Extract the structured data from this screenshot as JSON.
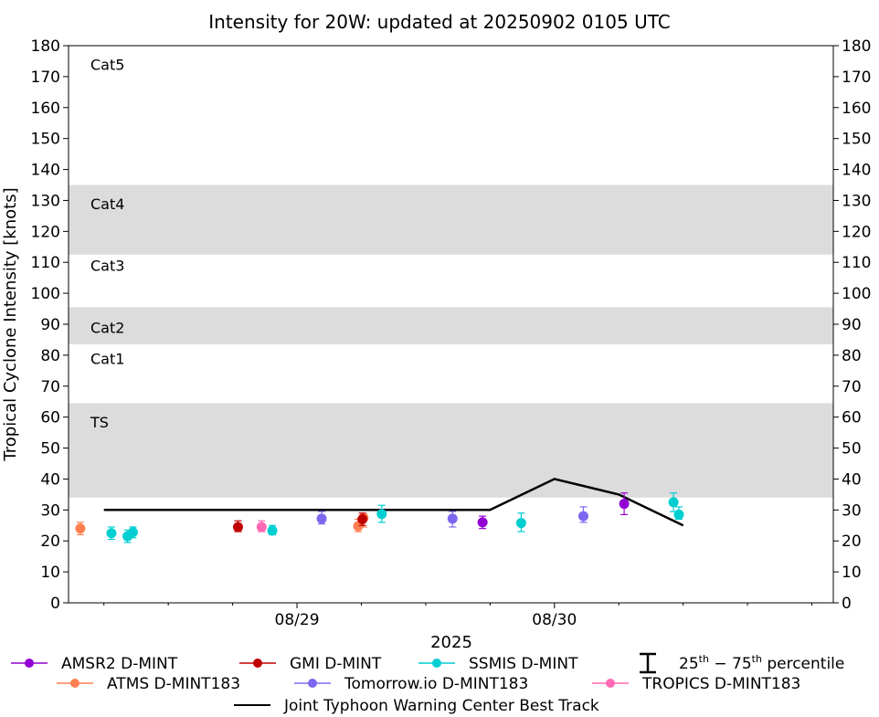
{
  "chart_data": {
    "type": "scatter",
    "title": "Intensity for 20W: updated at 20250902 0105 UTC",
    "ylabel": "Tropical Cyclone Intensity [knots]",
    "xlabel": "2025",
    "ylim": [
      0,
      180
    ],
    "xlim_hours": [
      -21.3,
      50.0
    ],
    "x_units": "hours since 08/29 00 UTC",
    "y_ticks": [
      0,
      10,
      20,
      30,
      40,
      50,
      60,
      70,
      80,
      90,
      100,
      110,
      120,
      130,
      140,
      150,
      160,
      170,
      180
    ],
    "x_major_ticks": [
      {
        "x": 0,
        "label": "08/29"
      },
      {
        "x": 24,
        "label": "08/30"
      }
    ],
    "x_minor_ticks": [
      -18,
      -12,
      -6,
      6,
      12,
      18,
      30,
      36,
      42,
      48
    ],
    "bands": [
      {
        "label": "TS",
        "y0": 34,
        "y1": 64.5,
        "shaded": true,
        "label_y": 58.5
      },
      {
        "label": "Cat1",
        "y0": 64.5,
        "y1": 83.5,
        "shaded": false,
        "label_y": 79
      },
      {
        "label": "Cat2",
        "y0": 83.5,
        "y1": 95.5,
        "shaded": true,
        "label_y": 89
      },
      {
        "label": "Cat3",
        "y0": 95.5,
        "y1": 112.5,
        "shaded": false,
        "label_y": 109
      },
      {
        "label": "Cat4",
        "y0": 112.5,
        "y1": 135,
        "shaded": true,
        "label_y": 129
      },
      {
        "label": "Cat5",
        "y0": 135,
        "y1": 180,
        "shaded": false,
        "label_y": 174
      }
    ],
    "band_color": "#dcdcdc",
    "best_track": {
      "name": "Joint Typhoon Warning Center Best Track",
      "color": "#000000",
      "x": [
        -18,
        18,
        24,
        30,
        36
      ],
      "y": [
        30,
        30,
        40,
        35,
        25
      ]
    },
    "series": [
      {
        "name": "AMSR2 D-MINT",
        "color": "#9400d3",
        "points": [
          [
            17.3,
            26,
            24,
            28
          ],
          [
            30.5,
            32,
            28.5,
            35.5
          ]
        ]
      },
      {
        "name": "ATMS D-MINT183",
        "color": "#ff7f50",
        "points": [
          [
            -20.2,
            24,
            22,
            26
          ],
          [
            5.7,
            24.8,
            23,
            27
          ],
          [
            6.2,
            27.5,
            24.5,
            28.5
          ]
        ]
      },
      {
        "name": "GMI D-MINT",
        "color": "#c00000",
        "points": [
          [
            -5.5,
            24.5,
            23,
            26.5
          ],
          [
            6.1,
            27,
            25,
            29
          ]
        ]
      },
      {
        "name": "Tomorrow.io D-MINT183",
        "color": "#7b68ee",
        "points": [
          [
            2.3,
            27.2,
            25.5,
            29.5
          ],
          [
            14.5,
            27.2,
            24.5,
            29.5
          ],
          [
            26.7,
            28,
            26,
            31
          ]
        ]
      },
      {
        "name": "SSMIS D-MINT",
        "color": "#00ced1",
        "points": [
          [
            -17.3,
            22.5,
            20.5,
            24.5
          ],
          [
            -15.8,
            21.5,
            19.5,
            23.5
          ],
          [
            -15.3,
            22.8,
            21,
            24.5
          ],
          [
            -2.3,
            23.3,
            22,
            25
          ],
          [
            7.9,
            28.7,
            26,
            31.5
          ],
          [
            20.9,
            25.8,
            23,
            29
          ],
          [
            35.1,
            32.5,
            29.5,
            35.5
          ],
          [
            35.6,
            28.5,
            27,
            31
          ]
        ]
      },
      {
        "name": "TROPICS D-MINT183",
        "color": "#ff69b4",
        "points": [
          [
            -3.3,
            24.5,
            23,
            26.5
          ]
        ]
      }
    ],
    "legend": {
      "placement": "bottom",
      "entries": [
        [
          "AMSR2 D-MINT",
          "GMI D-MINT",
          "SSMIS D-MINT",
          "percentile"
        ],
        [
          "ATMS D-MINT183",
          "Tomorrow.io D-MINT183",
          "TROPICS D-MINT183"
        ],
        [
          "Joint Typhoon Warning Center Best Track"
        ]
      ],
      "percentile_label": {
        "p1": "25",
        "p1_sup": "th",
        "dash": " − ",
        "p2": "75",
        "p2_sup": "th",
        "tail": " percentile"
      }
    }
  }
}
